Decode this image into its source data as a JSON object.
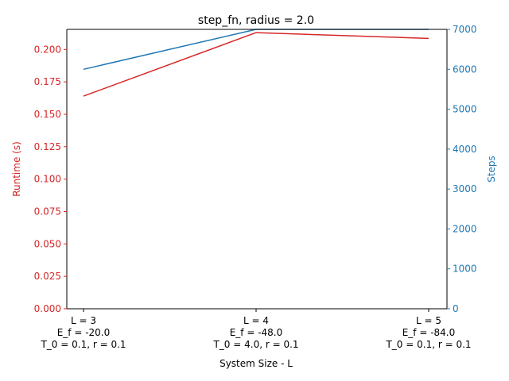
{
  "colors": {
    "runtime": "#d62728",
    "steps": "#1f77b4",
    "axis": "#000000",
    "background": "#ffffff"
  },
  "chart_data": {
    "type": "line",
    "title": "step_fn, radius = 2.0",
    "xlabel": "System Size - L",
    "categories": [
      [
        "L = 3",
        "E_f = -20.0",
        "T_0 = 0.1, r = 0.1"
      ],
      [
        "L = 4",
        "E_f = -48.0",
        "T_0 = 4.0, r = 0.1"
      ],
      [
        "L = 5",
        "E_f = -84.0",
        "T_0 = 0.1, r = 0.1"
      ]
    ],
    "grid": false,
    "y_left": {
      "label": "Runtime (s)",
      "color": "#d62728",
      "ylim": [
        0,
        0.2155
      ],
      "ticks": [
        0.0,
        0.025,
        0.05,
        0.075,
        0.1,
        0.125,
        0.15,
        0.175,
        0.2
      ],
      "tick_labels": [
        "0.000",
        "0.025",
        "0.050",
        "0.075",
        "0.100",
        "0.125",
        "0.150",
        "0.175",
        "0.200"
      ]
    },
    "y_right": {
      "label": "Steps",
      "color": "#1f77b4",
      "ylim": [
        0,
        7000
      ],
      "ticks": [
        0,
        1000,
        2000,
        3000,
        4000,
        5000,
        6000,
        7000
      ],
      "tick_labels": [
        "0",
        "1000",
        "2000",
        "3000",
        "4000",
        "5000",
        "6000",
        "7000"
      ]
    },
    "series": [
      {
        "axis": "left",
        "color": "#d62728",
        "values": [
          0.164,
          0.213,
          0.2085
        ]
      },
      {
        "axis": "right",
        "color": "#1f77b4",
        "values": [
          6000,
          7000,
          7000
        ]
      }
    ]
  }
}
